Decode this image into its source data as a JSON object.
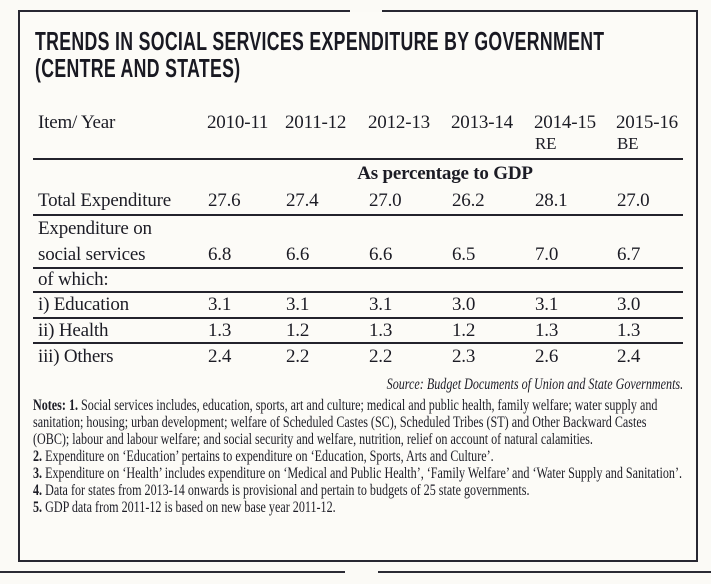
{
  "title": {
    "line1": "TRENDS IN SOCIAL SERVICES EXPENDITURE BY GOVERNMENT",
    "line2": "(CENTRE AND STATES)"
  },
  "table": {
    "header": {
      "item_label": "Item/ Year",
      "years": [
        "2010-11",
        "2011-12",
        "2012-13",
        "2013-14",
        "2014-15",
        "2015-16"
      ],
      "sub": [
        "",
        "",
        "",
        "",
        "RE",
        "BE"
      ]
    },
    "section_label": "As percentage to GDP",
    "rows": [
      {
        "label": "Total Expenditure",
        "values": [
          "27.6",
          "27.4",
          "27.0",
          "26.2",
          "28.1",
          "27.0"
        ]
      },
      {
        "label": "Expenditure on",
        "label2": "social services",
        "values": [
          "6.8",
          "6.6",
          "6.6",
          "6.5",
          "7.0",
          "6.7"
        ]
      },
      {
        "label": "of which:",
        "values": []
      },
      {
        "label": "i) Education",
        "values": [
          "3.1",
          "3.1",
          "3.1",
          "3.0",
          "3.1",
          "3.0"
        ]
      },
      {
        "label": "ii) Health",
        "values": [
          "1.3",
          "1.2",
          "1.3",
          "1.2",
          "1.3",
          "1.3"
        ]
      },
      {
        "label": "iii) Others",
        "values": [
          "2.4",
          "2.2",
          "2.2",
          "2.3",
          "2.6",
          "2.4"
        ]
      }
    ],
    "source": "Source: Budget Documents of Union and State Governments."
  },
  "notes": [
    {
      "prefix": "Notes: 1.",
      "text": " Social services includes, education, sports, art and culture; medical and public health, family welfare; water supply and sanitation; housing; urban development; welfare of Scheduled Castes (SC), Scheduled Tribes (ST) and Other Backward Castes (OBC); labour and labour welfare; and social security and welfare, nutrition, relief on account of natural calamities."
    },
    {
      "prefix": "2.",
      "text": " Expenditure on ‘Education’ pertains to expenditure on ‘Education, Sports, Arts and Culture’."
    },
    {
      "prefix": "3.",
      "text": " Expenditure on ‘Health’ includes expenditure on ‘Medical and Public Health’, ‘Family Welfare’ and ‘Water Supply and Sanitation’."
    },
    {
      "prefix": "4.",
      "text": " Data for states from 2013-14 onwards is provisional and pertain to budgets of 25 state governments."
    },
    {
      "prefix": "5.",
      "text": " GDP data from 2011-12 is based on new base year 2011-12."
    }
  ],
  "colors": {
    "ink": "#1c1c25",
    "rule": "#23232c",
    "paper": "#fbfaf6"
  }
}
